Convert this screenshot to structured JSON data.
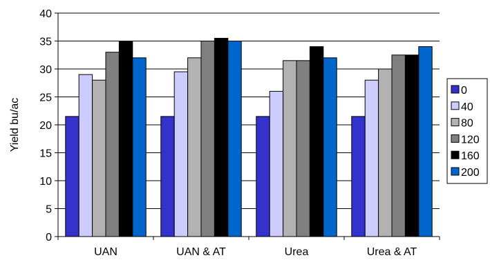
{
  "chart_data": {
    "type": "bar",
    "ylabel": "Yield bu/ac",
    "ylim": [
      0,
      40
    ],
    "yticks": [
      "0",
      "5",
      "10",
      "15",
      "20",
      "25",
      "30",
      "35",
      "40"
    ],
    "grid": "horizontal",
    "legend_position": "right",
    "categories": [
      "UAN",
      "UAN & AT",
      "Urea",
      "Urea & AT"
    ],
    "series": [
      {
        "name": "0",
        "color": "#3333CC",
        "values": [
          21.5,
          21.5,
          21.5,
          21.5
        ]
      },
      {
        "name": "40",
        "color": "#CCCCFF",
        "values": [
          29,
          29.5,
          26,
          28
        ]
      },
      {
        "name": "80",
        "color": "#B2B2B2",
        "values": [
          28,
          32,
          31.5,
          30
        ]
      },
      {
        "name": "120",
        "color": "#808080",
        "values": [
          33,
          35,
          31.5,
          32.5
        ]
      },
      {
        "name": "160",
        "color": "#000000",
        "values": [
          35,
          35.5,
          34,
          32.5
        ]
      },
      {
        "name": "200",
        "color": "#0066CC",
        "values": [
          32,
          35,
          32,
          34
        ]
      }
    ]
  }
}
